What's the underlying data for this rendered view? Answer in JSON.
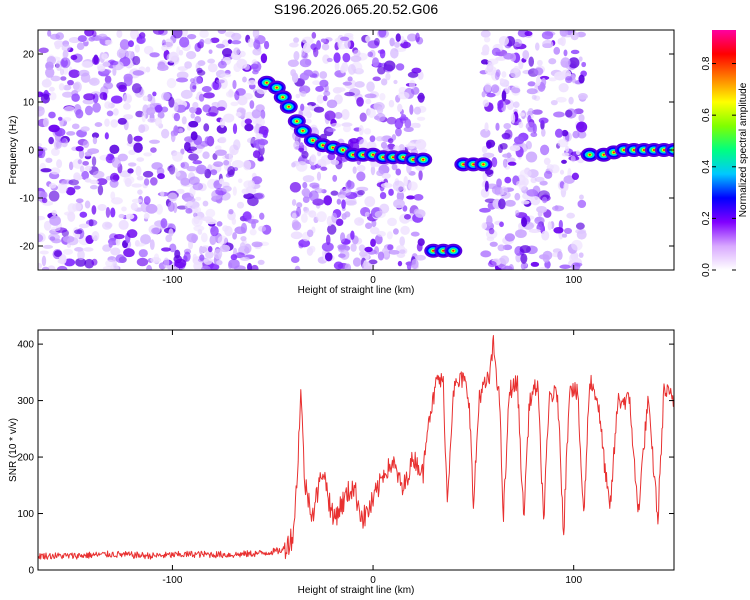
{
  "title": "S196.2026.065.20.52.G06",
  "chart_data": [
    {
      "type": "heatmap",
      "name": "spectrogram",
      "xlabel": "Height of straight line (km)",
      "ylabel": "Frequency (Hz)",
      "xlim": [
        -167,
        150
      ],
      "ylim": [
        -25,
        25
      ],
      "xticks": [
        -100,
        0,
        100
      ],
      "yticks": [
        -20,
        -10,
        0,
        10,
        20
      ],
      "colorbar": {
        "label": "Normalized spectral amplitude",
        "range": [
          0,
          0.93
        ],
        "ticks": [
          0.0,
          0.2,
          0.4,
          0.6,
          0.8
        ],
        "tick_labels": [
          "0.0",
          "0.2",
          "0.4",
          "0.6",
          "0.8"
        ],
        "colors": [
          "#ffffff",
          "#d8a8ff",
          "#8000ff",
          "#0000ff",
          "#00c8ff",
          "#00ff80",
          "#80ff00",
          "#ffff00",
          "#ff8000",
          "#ff0000",
          "#ff00a0"
        ]
      },
      "noise_regions": [
        [
          -167,
          -53
        ],
        [
          -40,
          25
        ],
        [
          55,
          105
        ]
      ],
      "ridge": [
        {
          "x": -53,
          "y": 14
        },
        {
          "x": -48,
          "y": 13
        },
        {
          "x": -45,
          "y": 11
        },
        {
          "x": -42,
          "y": 9
        },
        {
          "x": -38,
          "y": 6
        },
        {
          "x": -35,
          "y": 4
        },
        {
          "x": -30,
          "y": 2
        },
        {
          "x": -25,
          "y": 1
        },
        {
          "x": -20,
          "y": 0.5
        },
        {
          "x": -15,
          "y": 0
        },
        {
          "x": -10,
          "y": -1
        },
        {
          "x": -5,
          "y": -1
        },
        {
          "x": 0,
          "y": -1
        },
        {
          "x": 5,
          "y": -1.5
        },
        {
          "x": 10,
          "y": -1.5
        },
        {
          "x": 15,
          "y": -1.5
        },
        {
          "x": 20,
          "y": -2
        },
        {
          "x": 25,
          "y": -2
        },
        {
          "x": 30,
          "y": -21
        },
        {
          "x": 35,
          "y": -21
        },
        {
          "x": 40,
          "y": -21
        },
        {
          "x": 45,
          "y": -3
        },
        {
          "x": 50,
          "y": -3
        },
        {
          "x": 55,
          "y": -3
        },
        {
          "x": 108,
          "y": -1
        },
        {
          "x": 115,
          "y": -1
        },
        {
          "x": 120,
          "y": -0.5
        },
        {
          "x": 125,
          "y": 0
        },
        {
          "x": 130,
          "y": 0
        },
        {
          "x": 135,
          "y": 0
        },
        {
          "x": 140,
          "y": 0
        },
        {
          "x": 145,
          "y": 0
        },
        {
          "x": 150,
          "y": 0
        }
      ]
    },
    {
      "type": "line",
      "name": "snr",
      "xlabel": "Height of straight line (km)",
      "ylabel": "SNR (10 * v/v)",
      "xlim": [
        -167,
        150
      ],
      "ylim": [
        0,
        425
      ],
      "xticks": [
        -100,
        0,
        100
      ],
      "yticks": [
        0,
        100,
        200,
        300,
        400
      ],
      "series_color": "#e83030",
      "series": [
        {
          "x": -167,
          "y": 25
        },
        {
          "x": -150,
          "y": 25
        },
        {
          "x": -130,
          "y": 28
        },
        {
          "x": -110,
          "y": 25
        },
        {
          "x": -90,
          "y": 28
        },
        {
          "x": -70,
          "y": 27
        },
        {
          "x": -55,
          "y": 30
        },
        {
          "x": -45,
          "y": 35
        },
        {
          "x": -40,
          "y": 60
        },
        {
          "x": -38,
          "y": 150
        },
        {
          "x": -36,
          "y": 320
        },
        {
          "x": -34,
          "y": 150
        },
        {
          "x": -30,
          "y": 100
        },
        {
          "x": -25,
          "y": 180
        },
        {
          "x": -20,
          "y": 90
        },
        {
          "x": -15,
          "y": 120
        },
        {
          "x": -10,
          "y": 150
        },
        {
          "x": -5,
          "y": 90
        },
        {
          "x": 0,
          "y": 120
        },
        {
          "x": 5,
          "y": 170
        },
        {
          "x": 10,
          "y": 190
        },
        {
          "x": 15,
          "y": 140
        },
        {
          "x": 20,
          "y": 200
        },
        {
          "x": 25,
          "y": 170
        },
        {
          "x": 27,
          "y": 260
        },
        {
          "x": 30,
          "y": 300
        },
        {
          "x": 32,
          "y": 340
        },
        {
          "x": 35,
          "y": 330
        },
        {
          "x": 37,
          "y": 120
        },
        {
          "x": 40,
          "y": 320
        },
        {
          "x": 45,
          "y": 340
        },
        {
          "x": 48,
          "y": 300
        },
        {
          "x": 50,
          "y": 110
        },
        {
          "x": 53,
          "y": 310
        },
        {
          "x": 58,
          "y": 340
        },
        {
          "x": 60,
          "y": 400
        },
        {
          "x": 63,
          "y": 300
        },
        {
          "x": 65,
          "y": 90
        },
        {
          "x": 68,
          "y": 320
        },
        {
          "x": 72,
          "y": 330
        },
        {
          "x": 75,
          "y": 90
        },
        {
          "x": 78,
          "y": 300
        },
        {
          "x": 82,
          "y": 330
        },
        {
          "x": 85,
          "y": 90
        },
        {
          "x": 88,
          "y": 310
        },
        {
          "x": 92,
          "y": 310
        },
        {
          "x": 95,
          "y": 70
        },
        {
          "x": 98,
          "y": 330
        },
        {
          "x": 102,
          "y": 310
        },
        {
          "x": 105,
          "y": 90
        },
        {
          "x": 108,
          "y": 340
        },
        {
          "x": 112,
          "y": 300
        },
        {
          "x": 118,
          "y": 100
        },
        {
          "x": 122,
          "y": 300
        },
        {
          "x": 128,
          "y": 300
        },
        {
          "x": 132,
          "y": 100
        },
        {
          "x": 137,
          "y": 300
        },
        {
          "x": 142,
          "y": 90
        },
        {
          "x": 145,
          "y": 320
        },
        {
          "x": 150,
          "y": 300
        }
      ]
    }
  ]
}
